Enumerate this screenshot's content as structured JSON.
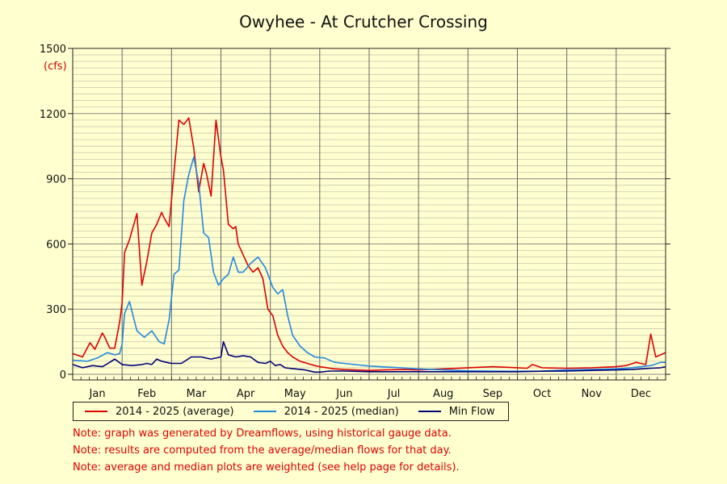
{
  "chart_data": {
    "type": "line",
    "title": "Owyhee - At Crutcher Crossing",
    "unit_label": "(cfs)",
    "ylim": [
      0,
      1500
    ],
    "yticks": [
      0,
      300,
      600,
      900,
      1200,
      1500
    ],
    "months": [
      "Jan",
      "Feb",
      "Mar",
      "Apr",
      "May",
      "Jun",
      "Jul",
      "Aug",
      "Sep",
      "Oct",
      "Nov",
      "Dec"
    ],
    "xlim": [
      0,
      12
    ],
    "grid": true,
    "legend_position": "bottom",
    "colors": {
      "average": "#dd0000",
      "median": "#2288dd",
      "min": "#000077"
    },
    "series": [
      {
        "name": "2014 - 2025 (average)",
        "key": "average",
        "x": [
          0,
          0.2,
          0.35,
          0.45,
          0.6,
          0.65,
          0.75,
          0.85,
          0.95,
          1.0,
          1.05,
          1.15,
          1.3,
          1.4,
          1.5,
          1.6,
          1.7,
          1.8,
          1.85,
          1.95,
          2.05,
          2.15,
          2.25,
          2.35,
          2.45,
          2.55,
          2.65,
          2.7,
          2.8,
          2.9,
          3.0,
          3.05,
          3.15,
          3.25,
          3.3,
          3.35,
          3.45,
          3.55,
          3.65,
          3.75,
          3.85,
          3.95,
          4.05,
          4.15,
          4.25,
          4.35,
          4.45,
          4.6,
          4.75,
          4.9,
          5.0,
          5.15,
          5.3,
          5.5,
          5.7,
          6.0,
          6.3,
          6.7,
          7.0,
          7.5,
          8.0,
          8.5,
          9.0,
          9.2,
          9.3,
          9.5,
          10.0,
          10.5,
          11.0,
          11.2,
          11.4,
          11.5,
          11.6,
          11.7,
          11.8,
          11.9,
          12.0
        ],
        "y": [
          95,
          80,
          145,
          115,
          190,
          170,
          120,
          120,
          240,
          330,
          560,
          620,
          740,
          410,
          520,
          650,
          690,
          745,
          720,
          680,
          930,
          1170,
          1150,
          1180,
          1040,
          840,
          970,
          930,
          820,
          1170,
          1000,
          940,
          690,
          670,
          680,
          600,
          550,
          500,
          470,
          490,
          440,
          300,
          270,
          180,
          130,
          100,
          80,
          60,
          50,
          40,
          35,
          30,
          25,
          22,
          20,
          18,
          20,
          22,
          20,
          25,
          30,
          35,
          30,
          28,
          45,
          30,
          28,
          30,
          35,
          40,
          55,
          50,
          45,
          185,
          80,
          90,
          100
        ]
      },
      {
        "name": "2014 - 2025 (median)",
        "key": "median",
        "x": [
          0,
          0.3,
          0.5,
          0.7,
          0.85,
          0.95,
          1.0,
          1.05,
          1.15,
          1.3,
          1.45,
          1.6,
          1.75,
          1.85,
          1.95,
          2.05,
          2.15,
          2.25,
          2.35,
          2.45,
          2.55,
          2.65,
          2.75,
          2.85,
          2.95,
          3.05,
          3.15,
          3.25,
          3.35,
          3.45,
          3.6,
          3.75,
          3.9,
          4.05,
          4.15,
          4.25,
          4.35,
          4.45,
          4.6,
          4.75,
          4.9,
          5.1,
          5.3,
          5.5,
          6.0,
          6.5,
          7.0,
          7.5,
          8.0,
          8.5,
          9.0,
          9.5,
          10.0,
          10.5,
          11.0,
          11.3,
          11.5,
          11.7,
          11.9,
          12.0
        ],
        "y": [
          65,
          60,
          75,
          100,
          90,
          95,
          140,
          280,
          335,
          200,
          170,
          200,
          150,
          140,
          250,
          460,
          480,
          800,
          920,
          1000,
          880,
          650,
          630,
          470,
          410,
          440,
          460,
          540,
          470,
          470,
          510,
          540,
          490,
          400,
          370,
          390,
          270,
          180,
          130,
          100,
          80,
          75,
          55,
          50,
          38,
          32,
          25,
          20,
          16,
          15,
          14,
          15,
          20,
          22,
          25,
          30,
          35,
          40,
          55,
          55
        ]
      },
      {
        "name": "Min Flow",
        "key": "min",
        "x": [
          0,
          0.2,
          0.4,
          0.6,
          0.75,
          0.85,
          1.0,
          1.2,
          1.4,
          1.5,
          1.6,
          1.7,
          1.8,
          1.9,
          2.0,
          2.2,
          2.4,
          2.6,
          2.8,
          3.0,
          3.05,
          3.15,
          3.3,
          3.45,
          3.6,
          3.75,
          3.9,
          4.0,
          4.1,
          4.2,
          4.3,
          4.5,
          4.7,
          4.9,
          5.0,
          5.2,
          5.5,
          6.0,
          6.5,
          7.0,
          7.5,
          8.0,
          8.5,
          9.0,
          9.5,
          10.0,
          10.5,
          11.0,
          11.3,
          11.5,
          11.7,
          11.9,
          12.0
        ],
        "y": [
          45,
          30,
          40,
          35,
          55,
          70,
          45,
          40,
          45,
          50,
          45,
          70,
          60,
          55,
          50,
          50,
          80,
          80,
          70,
          80,
          150,
          90,
          80,
          85,
          80,
          55,
          50,
          60,
          40,
          45,
          30,
          25,
          20,
          10,
          10,
          15,
          15,
          12,
          12,
          12,
          12,
          12,
          12,
          12,
          14,
          15,
          18,
          20,
          22,
          25,
          28,
          30,
          35
        ]
      }
    ],
    "notes": [
      "Note: graph was generated by Dreamflows, using historical gauge data.",
      "Note: results are computed from the average/median flows for that day.",
      "Note: average and median plots are weighted (see help page for details)."
    ]
  }
}
